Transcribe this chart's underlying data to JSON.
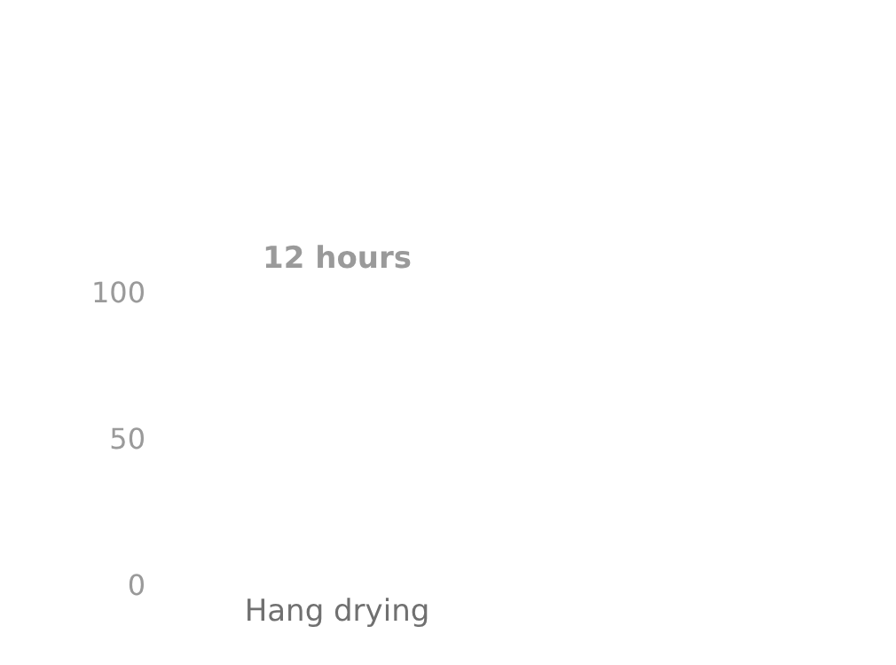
{
  "chart_data": {
    "type": "bar",
    "categories": [
      "Hang drying"
    ],
    "values": [
      null
    ],
    "annotations": [
      "12 hours"
    ],
    "ylim": [
      0,
      100
    ],
    "yticks": [
      0,
      50,
      100
    ]
  }
}
